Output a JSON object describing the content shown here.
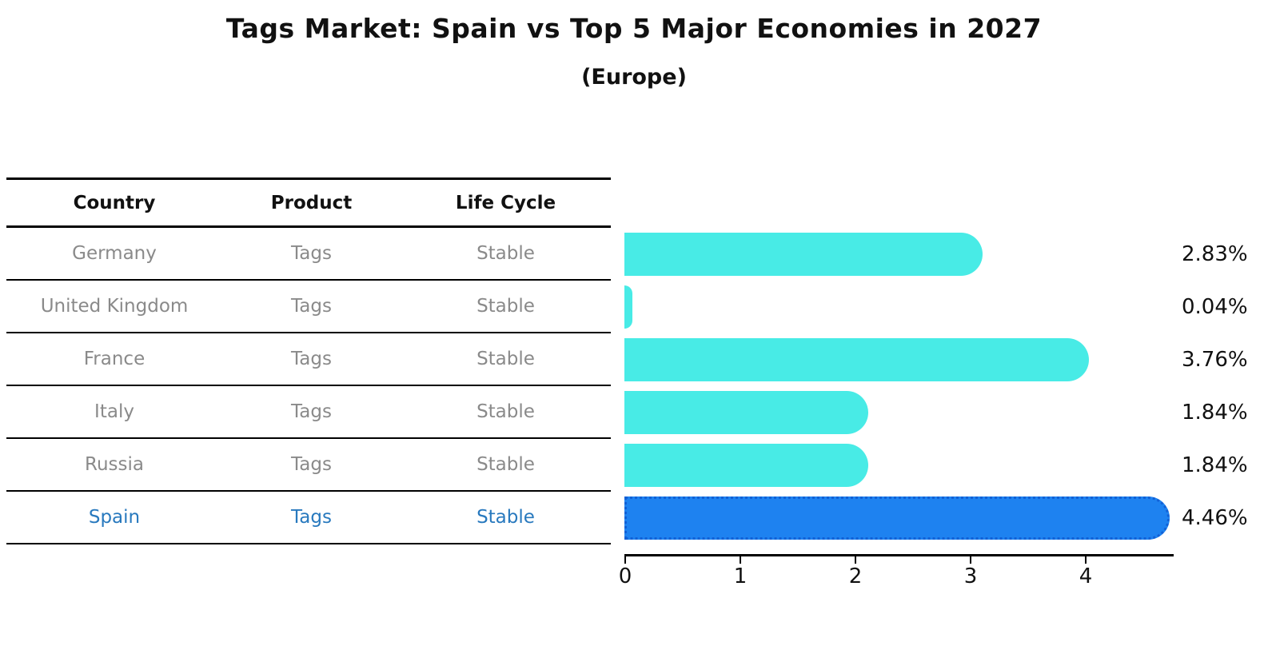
{
  "header": {
    "title": "Tags Market: Spain vs Top 5 Major Economies in 2027",
    "subtitle": "(Europe)"
  },
  "table": {
    "columns": [
      "Country",
      "Product",
      "Life Cycle"
    ],
    "rows": [
      {
        "country": "Germany",
        "product": "Tags",
        "life_cycle": "Stable",
        "highlight": false
      },
      {
        "country": "United Kingdom",
        "product": "Tags",
        "life_cycle": "Stable",
        "highlight": false
      },
      {
        "country": "France",
        "product": "Tags",
        "life_cycle": "Stable",
        "highlight": false
      },
      {
        "country": "Italy",
        "product": "Tags",
        "life_cycle": "Stable",
        "highlight": false
      },
      {
        "country": "Russia",
        "product": "Tags",
        "life_cycle": "Stable",
        "highlight": false
      },
      {
        "country": "Spain",
        "product": "Tags",
        "life_cycle": "Stable",
        "highlight": true
      }
    ]
  },
  "chart_data": {
    "type": "bar",
    "orientation": "horizontal",
    "title": "Tags Market: Spain vs Top 5 Major Economies in 2027",
    "subtitle": "(Europe)",
    "categories": [
      "Germany",
      "United Kingdom",
      "France",
      "Italy",
      "Russia",
      "Spain"
    ],
    "values": [
      2.83,
      0.04,
      3.76,
      1.84,
      1.84,
      4.46
    ],
    "value_labels": [
      "2.83%",
      "0.04%",
      "3.76%",
      "1.84%",
      "1.84%",
      "4.46%"
    ],
    "xlabel": "",
    "ylabel": "",
    "xlim": [
      0,
      4.7
    ],
    "xticks": [
      0,
      1,
      2,
      3,
      4
    ],
    "grid": false,
    "legend": "none",
    "bar_color": "#48EBE6",
    "highlight_color": "#1E82F0",
    "highlight_index": 5,
    "highlight_border_style": "dotted",
    "highlight_border_color": "#1261d6"
  }
}
